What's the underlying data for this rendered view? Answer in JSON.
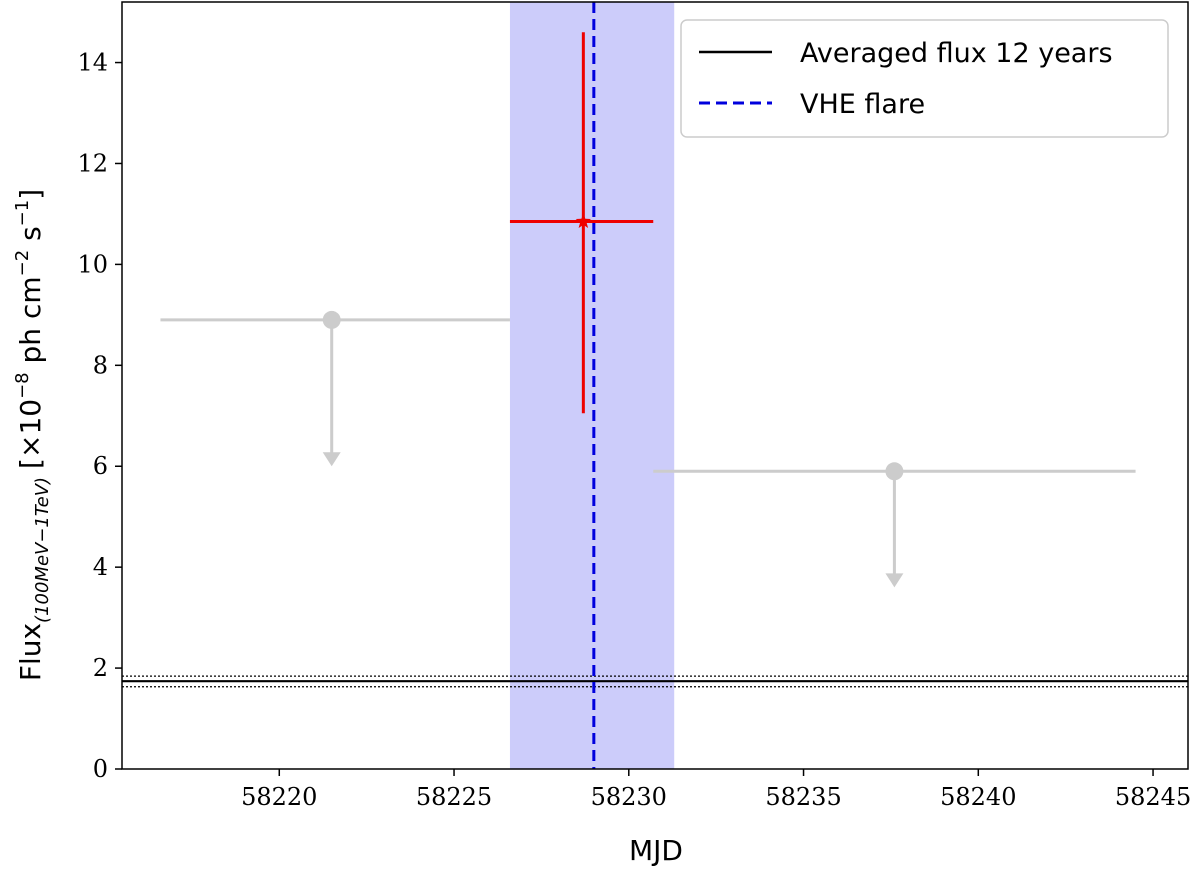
{
  "chart_data": {
    "type": "scatter",
    "xlabel": "MJD",
    "ylabel": {
      "main": "Flux",
      "sub": "(100MeV−1TeV)",
      "scale": "[×10",
      "exp": "−8",
      "units1": " ph cm",
      "exp2": "−2",
      "units2": " s",
      "exp3": "−1",
      "close": "]"
    },
    "xlim": [
      58215.5,
      58246
    ],
    "ylim": [
      0,
      15.2
    ],
    "xticks": [
      58220,
      58225,
      58230,
      58235,
      58240,
      58245
    ],
    "yticks": [
      0,
      2,
      4,
      6,
      8,
      10,
      12,
      14
    ],
    "grid": false,
    "legend_position": "top-right",
    "colors": {
      "averaged": "#000000",
      "vhe_flare": "#0000dd",
      "vhe_band": "#ccccfa",
      "detection": "#ee0000",
      "upper_limit": "#cccccc"
    },
    "averaged_flux": {
      "name": "Averaged flux 12 years",
      "value": 1.74,
      "lower": 1.63,
      "upper": 1.84
    },
    "vhe_flare": {
      "name": "VHE flare",
      "x": 58229.0,
      "band": [
        58226.6,
        58231.3
      ]
    },
    "detection": {
      "x": 58228.7,
      "y": 10.85,
      "xerr": [
        58226.6,
        58230.7
      ],
      "yerr": [
        7.05,
        14.6
      ]
    },
    "upper_limits": [
      {
        "x": 58221.5,
        "y": 8.9,
        "xerr": [
          58216.6,
          58226.6
        ],
        "arrow_to": 6.0
      },
      {
        "x": 58237.6,
        "y": 5.9,
        "xerr": [
          58230.7,
          58244.5
        ],
        "arrow_to": 3.6
      }
    ]
  }
}
